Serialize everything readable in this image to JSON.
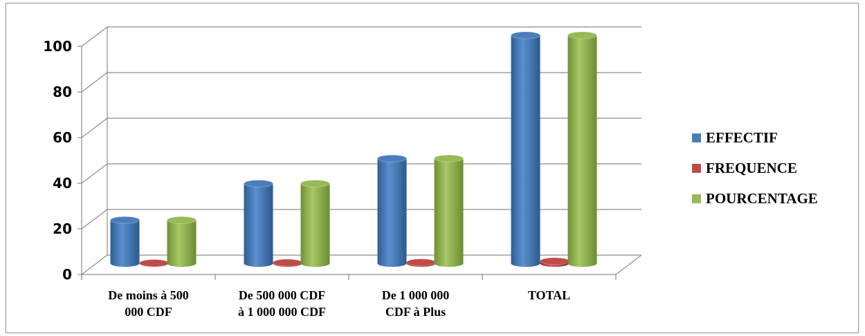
{
  "chart_data": {
    "type": "bar",
    "title": "",
    "xlabel": "",
    "ylabel": "",
    "ylim": [
      0,
      100
    ],
    "yticks": [
      0,
      20,
      40,
      60,
      80,
      100
    ],
    "categories": [
      [
        "De moins à 500",
        "000 CDF"
      ],
      [
        "De 500 000 CDF",
        "à 1 000 000 CDF"
      ],
      [
        "De 1 000 000",
        "CDF à Plus"
      ],
      [
        "TOTAL"
      ]
    ],
    "series": [
      {
        "name": "EFFECTIF",
        "color": "#4a7ebb",
        "values": [
          19,
          35,
          46,
          100
        ]
      },
      {
        "name": "FREQUENCE",
        "color": "#be4b48",
        "values": [
          0.19,
          0.35,
          0.46,
          1
        ]
      },
      {
        "name": "POURCENTAGE",
        "color": "#98b954",
        "values": [
          19,
          35,
          46,
          100
        ]
      }
    ],
    "grid": true,
    "legend_position": "right",
    "style": "3d-cylinder"
  }
}
